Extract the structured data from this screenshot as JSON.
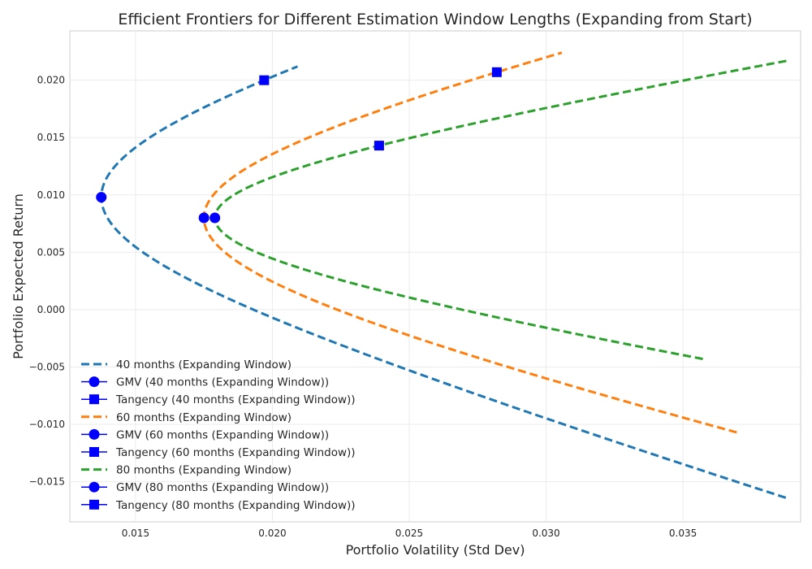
{
  "chart_data": {
    "type": "line",
    "title": "Efficient Frontiers for Different Estimation Window Lengths (Expanding from Start)",
    "xlabel": "Portfolio Volatility (Std Dev)",
    "ylabel": "Portfolio Expected Return",
    "xlim": [
      0.0126,
      0.0393
    ],
    "ylim": [
      -0.0185,
      0.0243
    ],
    "xticks": [
      0.015,
      0.02,
      0.025,
      0.03,
      0.035
    ],
    "xtick_labels": [
      "0.015",
      "0.020",
      "0.025",
      "0.030",
      "0.035"
    ],
    "yticks": [
      -0.015,
      -0.01,
      -0.005,
      0.0,
      0.005,
      0.01,
      0.015,
      0.02
    ],
    "ytick_labels": [
      "−0.015",
      "−0.010",
      "−0.005",
      "0.000",
      "0.005",
      "0.010",
      "0.015",
      "0.020"
    ],
    "grid": true,
    "legend_position": "lower-left",
    "series": [
      {
        "name": "40 months (Expanding Window)",
        "color": "#1f77b4",
        "line_style": "dashed",
        "return_min": -0.0164,
        "return_max": 0.0212,
        "gmv": {
          "name": "GMV (40 months (Expanding Window))",
          "volatility": 0.01375,
          "return": 0.0098
        },
        "tangency": {
          "name": "Tangency (40 months (Expanding Window))",
          "volatility": 0.0197,
          "return": 0.02
        }
      },
      {
        "name": "60 months (Expanding Window)",
        "color": "#ff7f0e",
        "line_style": "dashed",
        "return_min": -0.0107,
        "return_max": 0.0224,
        "gmv": {
          "name": "GMV (60 months (Expanding Window))",
          "volatility": 0.0175,
          "return": 0.008
        },
        "tangency": {
          "name": "Tangency (60 months (Expanding Window))",
          "volatility": 0.0282,
          "return": 0.0207
        }
      },
      {
        "name": "80 months (Expanding Window)",
        "color": "#2ca02c",
        "line_style": "dashed",
        "return_min": -0.0043,
        "return_max": 0.0217,
        "gmv": {
          "name": "GMV (80 months (Expanding Window))",
          "volatility": 0.0179,
          "return": 0.008
        },
        "tangency": {
          "name": "Tangency (80 months (Expanding Window))",
          "volatility": 0.0239,
          "return": 0.0143
        }
      }
    ],
    "marker_color": "#0000ff"
  }
}
